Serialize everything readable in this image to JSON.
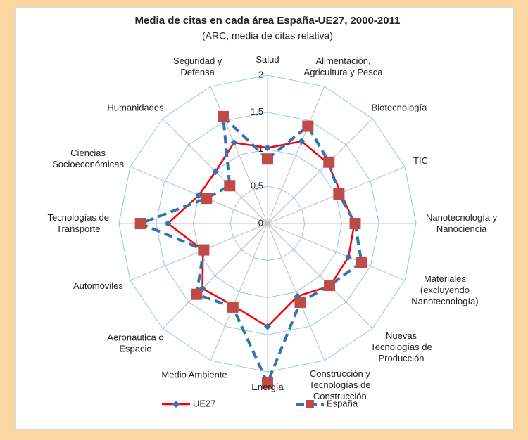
{
  "chart_data": {
    "type": "radar",
    "title": "Media de citas en cada área España-UE27, 2000-2011",
    "subtitle": "(ARC, media de citas relativa)",
    "categories": [
      "Salud",
      "Alimentación,\nAgricultura y Pesca",
      "Biotecnología",
      "TIC",
      "Nanotecnología y\nNanociencia",
      "Materiales\n(excluyendo\nNanotecnología)",
      "Nuevas\nTecnologías de\nProducción",
      "Construcción y\nTecnologías de\nConstrucción",
      "Energía",
      "Medio Ambiente",
      "Aeronautica o\nEspacio",
      "Automóviles",
      "Tecnologías de\nTransporte",
      "Ciencias\nSocioeconómicas",
      "Humanidades",
      "Seguridad y\nDefensa"
    ],
    "series": [
      {
        "name": "UE27",
        "color": "#ff0000",
        "marker_color": "#2e75b6",
        "marker": "diamond",
        "dashed": false,
        "values": [
          1.02,
          1.2,
          1.15,
          1.07,
          1.17,
          1.18,
          1.19,
          1.06,
          1.39,
          1.2,
          1.24,
          0.94,
          1.34,
          1.0,
          0.99,
          1.18
        ]
      },
      {
        "name": "España",
        "color": "#2e75b6",
        "marker_color": "#be4b48",
        "marker": "square",
        "dashed": true,
        "values": [
          0.87,
          1.42,
          1.17,
          1.04,
          1.18,
          1.37,
          1.18,
          1.15,
          2.15,
          1.22,
          1.35,
          0.93,
          1.71,
          0.89,
          0.72,
          1.56
        ]
      }
    ],
    "ylim": [
      0,
      2
    ],
    "yticks": [
      0,
      {
        "value": 0.5,
        "label": "0,5"
      },
      1,
      {
        "value": 1.5,
        "label": "1,5"
      },
      2
    ],
    "grid": true
  }
}
